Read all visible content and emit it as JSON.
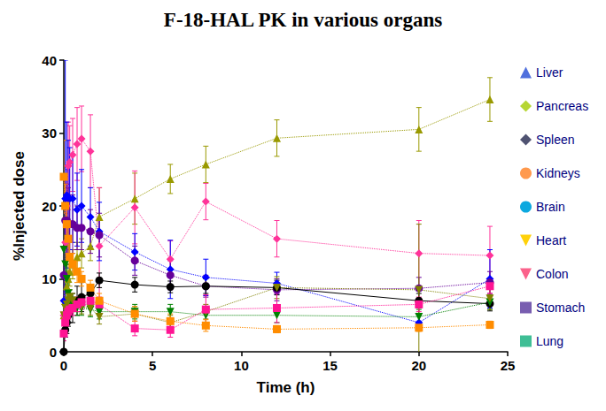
{
  "chart_data": {
    "type": "line",
    "title": "F-18-HAL PK in various organs",
    "x_label": "Time (h)",
    "y_label": "%Injected dose",
    "xlim": [
      0,
      25
    ],
    "xticks": [
      0,
      5,
      10,
      15,
      20,
      25
    ],
    "ylim": [
      0,
      40
    ],
    "yticks": [
      0,
      10,
      20,
      30,
      40
    ],
    "grid": false,
    "legend": "right",
    "x": [
      0,
      0.083,
      0.167,
      0.25,
      0.333,
      0.5,
      0.75,
      1,
      1.5,
      2,
      4,
      6,
      8,
      12,
      20,
      24
    ],
    "series": [
      {
        "name": "Liver",
        "color": "#999900",
        "marker": "triangle",
        "line_style": "dotted",
        "values": [
          5,
          7,
          9,
          10,
          11,
          12,
          13,
          13.5,
          14.5,
          18.5,
          21,
          23.7,
          25.7,
          29.3,
          30.5,
          34.6
        ],
        "errors": [
          1,
          1.5,
          2,
          2,
          2,
          2,
          2,
          2,
          2,
          4,
          3.5,
          2,
          2.5,
          2.5,
          3,
          3
        ]
      },
      {
        "name": "Pancreas",
        "color": "#ff3399",
        "marker": "diamond",
        "line_style": "dotted",
        "values": [
          5,
          15,
          20,
          25.5,
          26,
          27,
          28.5,
          29.2,
          27.5,
          14.5,
          19.8,
          12.7,
          20.6,
          15.5,
          13.5,
          13.2
        ],
        "errors": [
          2,
          4,
          5,
          6,
          5,
          5,
          5,
          4.5,
          5,
          8,
          5,
          2.5,
          2.5,
          2.5,
          4.5,
          4
        ]
      },
      {
        "name": "Spleen",
        "color": "#0000ff",
        "marker": "diamond",
        "line_style": "dotted",
        "values": [
          7,
          21,
          21.5,
          21,
          21,
          21,
          19.5,
          20,
          18.5,
          16.5,
          13.7,
          11.3,
          10.2,
          9.4,
          4,
          10
        ],
        "errors": [
          2,
          19,
          10,
          8,
          7,
          6,
          5,
          5,
          4,
          4,
          2.5,
          4,
          2.5,
          1.5,
          1,
          4
        ]
      },
      {
        "name": "Kidneys",
        "color": "#660099",
        "marker": "circle",
        "line_style": "dotted",
        "values": [
          10.5,
          18,
          18,
          17.5,
          17.5,
          17.5,
          17,
          17,
          16.5,
          16,
          12.5,
          10.5,
          9,
          8.5,
          8.7,
          9.5
        ],
        "errors": [
          2,
          6,
          5,
          5,
          4,
          4,
          3,
          3,
          3,
          3,
          2,
          2,
          1.5,
          1.5,
          1.5,
          1.5
        ]
      },
      {
        "name": "Brain",
        "color": "#000000",
        "marker": "circle",
        "line_style": "solid",
        "values": [
          0,
          3,
          4,
          5,
          5.5,
          6,
          7,
          7.5,
          8,
          9.8,
          9.2,
          8.9,
          9,
          8.8,
          7,
          6.6
        ],
        "errors": [
          0,
          1,
          1.5,
          1.5,
          1.5,
          2,
          2,
          2,
          1,
          1,
          1,
          0.8,
          1,
          1,
          1,
          1
        ]
      },
      {
        "name": "Heart",
        "color": "#008000",
        "marker": "triangle-down",
        "line_style": "dotted",
        "values": [
          14,
          12,
          10,
          8,
          7,
          6.5,
          6,
          6,
          5.8,
          5.5,
          5.5,
          5.5,
          5,
          5,
          4.8,
          6.8
        ],
        "errors": [
          2,
          3,
          2,
          2,
          1.5,
          1,
          1,
          1,
          1,
          1,
          1,
          1,
          1,
          1,
          1,
          1
        ]
      },
      {
        "name": "Colon",
        "color": "#808000",
        "marker": "triangle-down",
        "line_style": "dotted",
        "values": [
          5,
          6,
          6.5,
          7,
          7.5,
          7,
          6.5,
          6.2,
          6,
          4.8,
          5.2,
          4,
          5.5,
          8.8,
          8.5,
          7.3
        ],
        "errors": [
          1,
          1,
          1,
          1,
          1,
          1,
          1,
          1,
          1,
          1,
          1,
          1,
          1,
          1.5,
          9,
          1.5
        ]
      },
      {
        "name": "Stomach",
        "color": "#ff1493",
        "marker": "square",
        "line_style": "dotted",
        "values": [
          2.5,
          4,
          5,
          5.5,
          5.8,
          6,
          6.5,
          6.8,
          7,
          6.5,
          3.2,
          3,
          5.8,
          6,
          6.5,
          9
        ],
        "errors": [
          1,
          1,
          1,
          1,
          1,
          1,
          1,
          1,
          1,
          1,
          1,
          1,
          2,
          2,
          1,
          1
        ]
      },
      {
        "name": "Lung",
        "color": "#ff8c00",
        "marker": "square",
        "line_style": "dotted",
        "values": [
          24,
          20,
          17.5,
          15.5,
          13,
          12,
          11,
          10,
          8.8,
          7,
          5.2,
          4.2,
          3.6,
          3.1,
          3.3,
          3.7
        ],
        "errors": [
          5,
          3,
          3,
          2,
          2,
          1.5,
          1.5,
          1,
          1,
          1,
          1,
          1,
          0.8,
          0.5,
          0.5,
          0.5
        ]
      }
    ]
  }
}
